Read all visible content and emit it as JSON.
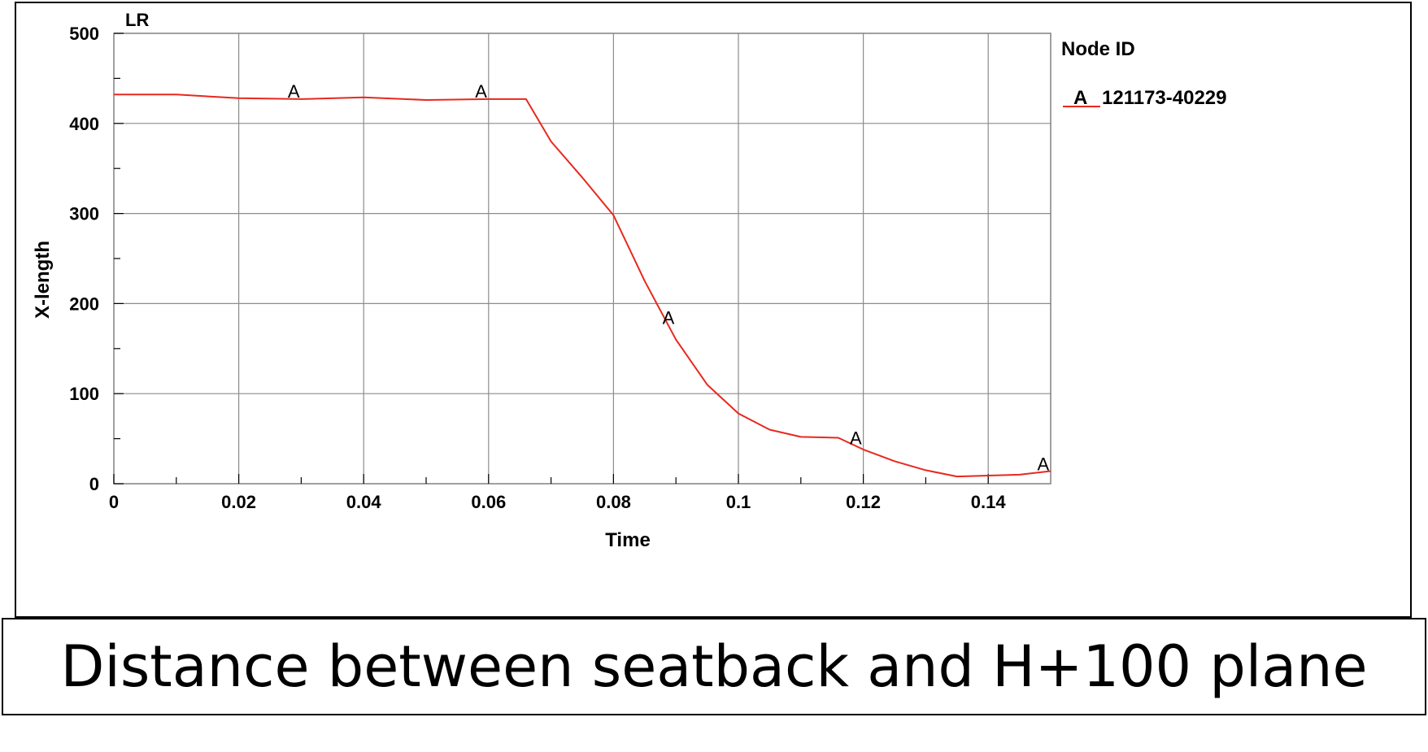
{
  "caption": "Distance between seatback and H+100 plane",
  "chart_data": {
    "type": "line",
    "corner_label": "LR",
    "xlabel": "Time",
    "ylabel": "X-length",
    "xlim": [
      0,
      0.15
    ],
    "ylim": [
      0,
      500
    ],
    "x_ticks": [
      0,
      0.02,
      0.04,
      0.06,
      0.08,
      0.1,
      0.12,
      0.14
    ],
    "x_tick_labels": [
      "0",
      "0.02",
      "0.04",
      "0.06",
      "0.08",
      "0.1",
      "0.12",
      "0.14"
    ],
    "y_ticks": [
      0,
      100,
      200,
      300,
      400,
      500
    ],
    "y_tick_labels": [
      "0",
      "100",
      "200",
      "300",
      "400",
      "500"
    ],
    "grid": true,
    "legend": {
      "title": "Node ID",
      "placement": "right",
      "entries": [
        {
          "marker": "A",
          "label": "121173-40229"
        }
      ]
    },
    "series": [
      {
        "name": "121173-40229",
        "marker": "A",
        "color": "#e8281e",
        "marker_x": [
          0.0288,
          0.0588,
          0.0888,
          0.1188,
          0.1488
        ],
        "x": [
          0,
          0.01,
          0.02,
          0.03,
          0.04,
          0.05,
          0.06,
          0.066,
          0.07,
          0.075,
          0.08,
          0.085,
          0.09,
          0.095,
          0.1,
          0.105,
          0.11,
          0.116,
          0.12,
          0.125,
          0.13,
          0.135,
          0.14,
          0.145,
          0.15
        ],
        "values": [
          432,
          432,
          428,
          427,
          429,
          426,
          427,
          427,
          380,
          340,
          298,
          225,
          160,
          110,
          78,
          60,
          52,
          51,
          38,
          25,
          15,
          8,
          9,
          10,
          14
        ]
      }
    ]
  }
}
